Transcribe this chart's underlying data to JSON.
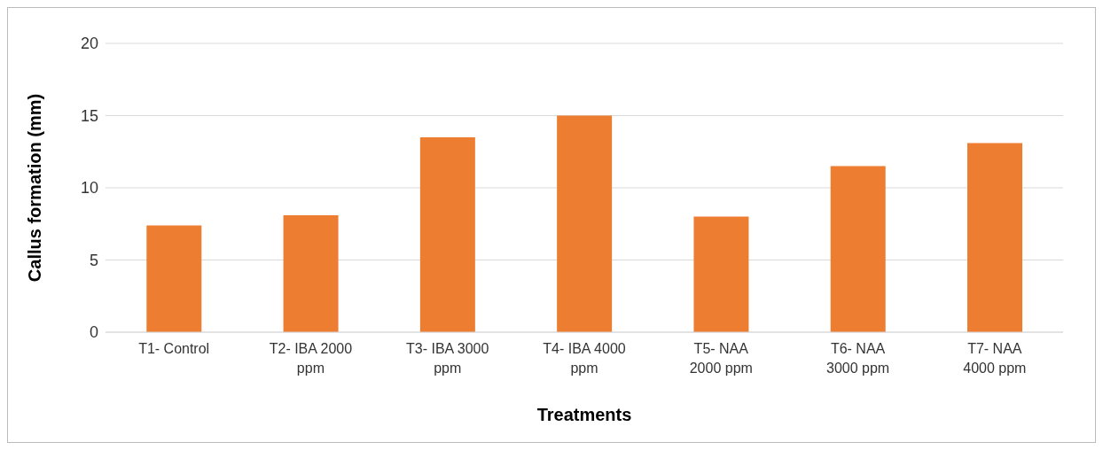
{
  "chart_data": {
    "type": "bar",
    "xlabel": "Treatments",
    "ylabel": "Callus formation (mm)",
    "categories": [
      "T1- Control",
      "T2- IBA 2000 ppm",
      "T3- IBA 3000 ppm",
      "T4- IBA 4000 ppm",
      "T5- NAA 2000 ppm",
      "T6- NAA 3000 ppm",
      "T7- NAA 4000 ppm"
    ],
    "values": [
      7.4,
      8.1,
      13.5,
      15.0,
      8.0,
      11.5,
      13.1
    ],
    "color": "#ed7d31",
    "ylim": [
      0,
      20
    ],
    "yticks": [
      0,
      5,
      10,
      15,
      20
    ],
    "grid": "y"
  }
}
